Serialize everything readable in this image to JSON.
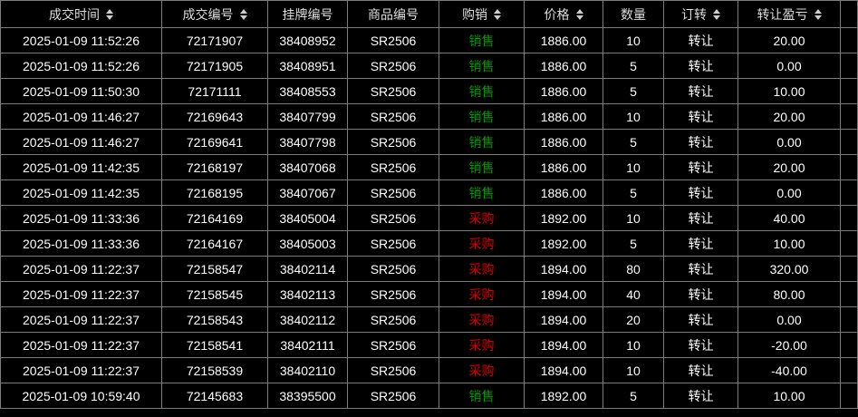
{
  "colors": {
    "background": "#000000",
    "grid_line": "#7c7c7c",
    "header_text": "#dcdcdc",
    "cell_text": "#ffffff",
    "sell_green": "#009a00",
    "buy_red": "#d80000"
  },
  "table": {
    "columns": [
      {
        "id": "trade_time",
        "label": "成交时间",
        "sortable": true
      },
      {
        "id": "trade_no",
        "label": "成交编号",
        "sortable": true
      },
      {
        "id": "listing_no",
        "label": "挂牌编号",
        "sortable": false
      },
      {
        "id": "product_no",
        "label": "商品编号",
        "sortable": false
      },
      {
        "id": "side",
        "label": "购销",
        "sortable": true
      },
      {
        "id": "price",
        "label": "价格",
        "sortable": true
      },
      {
        "id": "quantity",
        "label": "数量",
        "sortable": false
      },
      {
        "id": "transfer",
        "label": "订转",
        "sortable": true
      },
      {
        "id": "pnl",
        "label": "转让盈亏",
        "sortable": true
      },
      {
        "id": "spacer",
        "label": "",
        "sortable": false
      }
    ],
    "rows": [
      {
        "trade_time": "2025-01-09 11:52:26",
        "trade_no": "72171907",
        "listing_no": "38408952",
        "product_no": "SR2506",
        "side": "销售",
        "side_type": "sell",
        "price": "1886.00",
        "quantity": "10",
        "transfer": "转让",
        "pnl": "20.00"
      },
      {
        "trade_time": "2025-01-09 11:52:26",
        "trade_no": "72171905",
        "listing_no": "38408951",
        "product_no": "SR2506",
        "side": "销售",
        "side_type": "sell",
        "price": "1886.00",
        "quantity": "5",
        "transfer": "转让",
        "pnl": "0.00"
      },
      {
        "trade_time": "2025-01-09 11:50:30",
        "trade_no": "72171111",
        "listing_no": "38408553",
        "product_no": "SR2506",
        "side": "销售",
        "side_type": "sell",
        "price": "1886.00",
        "quantity": "5",
        "transfer": "转让",
        "pnl": "10.00"
      },
      {
        "trade_time": "2025-01-09 11:46:27",
        "trade_no": "72169643",
        "listing_no": "38407799",
        "product_no": "SR2506",
        "side": "销售",
        "side_type": "sell",
        "price": "1886.00",
        "quantity": "10",
        "transfer": "转让",
        "pnl": "20.00"
      },
      {
        "trade_time": "2025-01-09 11:46:27",
        "trade_no": "72169641",
        "listing_no": "38407798",
        "product_no": "SR2506",
        "side": "销售",
        "side_type": "sell",
        "price": "1886.00",
        "quantity": "5",
        "transfer": "转让",
        "pnl": "0.00"
      },
      {
        "trade_time": "2025-01-09 11:42:35",
        "trade_no": "72168197",
        "listing_no": "38407068",
        "product_no": "SR2506",
        "side": "销售",
        "side_type": "sell",
        "price": "1886.00",
        "quantity": "10",
        "transfer": "转让",
        "pnl": "20.00"
      },
      {
        "trade_time": "2025-01-09 11:42:35",
        "trade_no": "72168195",
        "listing_no": "38407067",
        "product_no": "SR2506",
        "side": "销售",
        "side_type": "sell",
        "price": "1886.00",
        "quantity": "5",
        "transfer": "转让",
        "pnl": "0.00"
      },
      {
        "trade_time": "2025-01-09 11:33:36",
        "trade_no": "72164169",
        "listing_no": "38405004",
        "product_no": "SR2506",
        "side": "采购",
        "side_type": "buy",
        "price": "1892.00",
        "quantity": "10",
        "transfer": "转让",
        "pnl": "40.00"
      },
      {
        "trade_time": "2025-01-09 11:33:36",
        "trade_no": "72164167",
        "listing_no": "38405003",
        "product_no": "SR2506",
        "side": "采购",
        "side_type": "buy",
        "price": "1892.00",
        "quantity": "5",
        "transfer": "转让",
        "pnl": "10.00"
      },
      {
        "trade_time": "2025-01-09 11:22:37",
        "trade_no": "72158547",
        "listing_no": "38402114",
        "product_no": "SR2506",
        "side": "采购",
        "side_type": "buy",
        "price": "1894.00",
        "quantity": "80",
        "transfer": "转让",
        "pnl": "320.00"
      },
      {
        "trade_time": "2025-01-09 11:22:37",
        "trade_no": "72158545",
        "listing_no": "38402113",
        "product_no": "SR2506",
        "side": "采购",
        "side_type": "buy",
        "price": "1894.00",
        "quantity": "40",
        "transfer": "转让",
        "pnl": "80.00"
      },
      {
        "trade_time": "2025-01-09 11:22:37",
        "trade_no": "72158543",
        "listing_no": "38402112",
        "product_no": "SR2506",
        "side": "采购",
        "side_type": "buy",
        "price": "1894.00",
        "quantity": "20",
        "transfer": "转让",
        "pnl": "0.00"
      },
      {
        "trade_time": "2025-01-09 11:22:37",
        "trade_no": "72158541",
        "listing_no": "38402111",
        "product_no": "SR2506",
        "side": "采购",
        "side_type": "buy",
        "price": "1894.00",
        "quantity": "10",
        "transfer": "转让",
        "pnl": "-20.00"
      },
      {
        "trade_time": "2025-01-09 11:22:37",
        "trade_no": "72158539",
        "listing_no": "38402110",
        "product_no": "SR2506",
        "side": "采购",
        "side_type": "buy",
        "price": "1894.00",
        "quantity": "10",
        "transfer": "转让",
        "pnl": "-40.00"
      },
      {
        "trade_time": "2025-01-09 10:59:40",
        "trade_no": "72145683",
        "listing_no": "38395500",
        "product_no": "SR2506",
        "side": "销售",
        "side_type": "sell",
        "price": "1892.00",
        "quantity": "5",
        "transfer": "转让",
        "pnl": "10.00"
      }
    ]
  }
}
